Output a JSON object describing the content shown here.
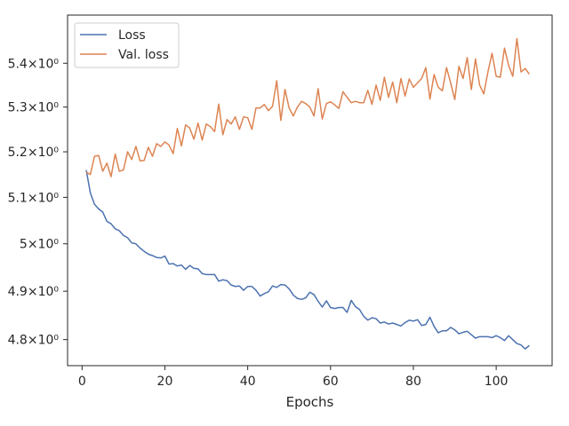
{
  "chart_data": {
    "type": "line",
    "xlabel": "Epochs",
    "ylabel": "",
    "yscale": "log",
    "xlim": [
      -3.5,
      113.5
    ],
    "ylim": [
      4.747,
      5.512
    ],
    "xticks": [
      0,
      20,
      40,
      60,
      80,
      100
    ],
    "xtick_labels": [
      "0",
      "20",
      "40",
      "60",
      "80",
      "100"
    ],
    "yticks": [
      4.8,
      4.9,
      5.0,
      5.1,
      5.2,
      5.3,
      5.4
    ],
    "ytick_labels": [
      "4.8×10⁰",
      "4.9×10⁰",
      "5×10⁰",
      "5.1×10⁰",
      "5.2×10⁰",
      "5.3×10⁰",
      "5.4×10⁰"
    ],
    "grid": false,
    "legend_position": "upper-left",
    "series": [
      {
        "name": "Loss",
        "color": "#4c72b0",
        "x": [
          1,
          2,
          3,
          4,
          5,
          6,
          7,
          8,
          9,
          10,
          11,
          12,
          13,
          14,
          15,
          16,
          17,
          18,
          19,
          20,
          21,
          22,
          23,
          24,
          25,
          26,
          27,
          28,
          29,
          30,
          31,
          32,
          33,
          34,
          35,
          36,
          37,
          38,
          39,
          40,
          41,
          42,
          43,
          44,
          45,
          46,
          47,
          48,
          49,
          50,
          51,
          52,
          53,
          54,
          55,
          56,
          57,
          58,
          59,
          60,
          61,
          62,
          63,
          64,
          65,
          66,
          67,
          68,
          69,
          70,
          71,
          72,
          73,
          74,
          75,
          76,
          77,
          78,
          79,
          80,
          81,
          82,
          83,
          84,
          85,
          86,
          87,
          88,
          89,
          90,
          91,
          92,
          93,
          94,
          95,
          96,
          97,
          98,
          99,
          100,
          101,
          102,
          103,
          104,
          105,
          106,
          107,
          108
        ],
        "values": [
          5.16,
          5.11,
          5.085,
          5.075,
          5.068,
          5.048,
          5.043,
          5.032,
          5.028,
          5.018,
          5.013,
          5.002,
          5.0,
          4.991,
          4.984,
          4.978,
          4.975,
          4.971,
          4.97,
          4.974,
          4.957,
          4.958,
          4.953,
          4.955,
          4.946,
          4.954,
          4.948,
          4.947,
          4.937,
          4.935,
          4.935,
          4.935,
          4.921,
          4.924,
          4.922,
          4.913,
          4.91,
          4.911,
          4.902,
          4.91,
          4.91,
          4.902,
          4.89,
          4.895,
          4.899,
          4.911,
          4.908,
          4.914,
          4.913,
          4.905,
          4.892,
          4.885,
          4.883,
          4.886,
          4.898,
          4.893,
          4.879,
          4.867,
          4.88,
          4.866,
          4.864,
          4.866,
          4.866,
          4.856,
          4.881,
          4.868,
          4.862,
          4.848,
          4.84,
          4.845,
          4.843,
          4.834,
          4.836,
          4.832,
          4.834,
          4.831,
          4.828,
          4.835,
          4.84,
          4.838,
          4.841,
          4.829,
          4.831,
          4.846,
          4.827,
          4.814,
          4.818,
          4.818,
          4.825,
          4.82,
          4.812,
          4.815,
          4.817,
          4.81,
          4.803,
          4.806,
          4.806,
          4.806,
          4.804,
          4.808,
          4.804,
          4.798,
          4.808,
          4.8,
          4.792,
          4.789,
          4.781,
          4.788
        ]
      },
      {
        "name": "Val. loss",
        "color": "#dd8452",
        "x": [
          1,
          2,
          3,
          4,
          5,
          6,
          7,
          8,
          9,
          10,
          11,
          12,
          13,
          14,
          15,
          16,
          17,
          18,
          19,
          20,
          21,
          22,
          23,
          24,
          25,
          26,
          27,
          28,
          29,
          30,
          31,
          32,
          33,
          34,
          35,
          36,
          37,
          38,
          39,
          40,
          41,
          42,
          43,
          44,
          45,
          46,
          47,
          48,
          49,
          50,
          51,
          52,
          53,
          54,
          55,
          56,
          57,
          58,
          59,
          60,
          61,
          62,
          63,
          64,
          65,
          66,
          67,
          68,
          69,
          70,
          71,
          72,
          73,
          74,
          75,
          76,
          77,
          78,
          79,
          80,
          81,
          82,
          83,
          84,
          85,
          86,
          87,
          88,
          89,
          90,
          91,
          92,
          93,
          94,
          95,
          96,
          97,
          98,
          99,
          100,
          101,
          102,
          103,
          104,
          105,
          106,
          107,
          108
        ],
        "values": [
          5.155,
          5.15,
          5.19,
          5.192,
          5.157,
          5.175,
          5.145,
          5.195,
          5.157,
          5.16,
          5.2,
          5.183,
          5.212,
          5.18,
          5.181,
          5.21,
          5.19,
          5.218,
          5.212,
          5.222,
          5.215,
          5.196,
          5.252,
          5.213,
          5.26,
          5.253,
          5.228,
          5.264,
          5.226,
          5.262,
          5.256,
          5.245,
          5.307,
          5.238,
          5.272,
          5.262,
          5.278,
          5.25,
          5.278,
          5.276,
          5.25,
          5.298,
          5.298,
          5.306,
          5.292,
          5.302,
          5.36,
          5.27,
          5.34,
          5.298,
          5.28,
          5.3,
          5.313,
          5.308,
          5.3,
          5.28,
          5.342,
          5.273,
          5.308,
          5.312,
          5.305,
          5.297,
          5.335,
          5.322,
          5.31,
          5.313,
          5.31,
          5.31,
          5.338,
          5.306,
          5.35,
          5.315,
          5.368,
          5.322,
          5.357,
          5.31,
          5.365,
          5.325,
          5.364,
          5.345,
          5.355,
          5.365,
          5.39,
          5.318,
          5.374,
          5.345,
          5.337,
          5.39,
          5.355,
          5.317,
          5.393,
          5.365,
          5.413,
          5.34,
          5.41,
          5.35,
          5.33,
          5.38,
          5.423,
          5.37,
          5.368,
          5.435,
          5.395,
          5.37,
          5.457,
          5.38,
          5.388,
          5.375
        ]
      }
    ]
  }
}
